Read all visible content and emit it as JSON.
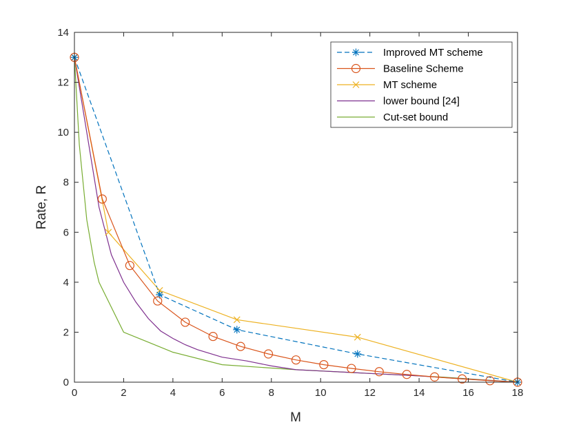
{
  "chart_data": {
    "type": "line",
    "title": "",
    "xlabel": "M",
    "ylabel": "Rate, R",
    "xlim": [
      0,
      18
    ],
    "ylim": [
      0,
      14
    ],
    "xticks": [
      "0",
      "2",
      "4",
      "6",
      "8",
      "10",
      "12",
      "14",
      "16",
      "18"
    ],
    "yticks": [
      "0",
      "2",
      "4",
      "6",
      "8",
      "10",
      "12",
      "14"
    ],
    "grid": false,
    "legend_position": "top-right",
    "series": [
      {
        "name": "Improved MT scheme",
        "color": "#0072BD",
        "line": "dashed",
        "marker": "asterisk",
        "x": [
          0,
          3.46,
          6.6,
          11.5,
          18
        ],
        "y": [
          13,
          3.5,
          2.1,
          1.13,
          0
        ],
        "marker_x": [
          0,
          3.46,
          6.6,
          11.5,
          18
        ],
        "marker_y": [
          13,
          3.5,
          2.1,
          1.13,
          0
        ]
      },
      {
        "name": "Baseline Scheme",
        "color": "#D95319",
        "line": "solid",
        "marker": "circle",
        "x": [
          0,
          1.13,
          2.25,
          3.38,
          4.5,
          5.63,
          6.75,
          7.88,
          9.0,
          10.13,
          11.25,
          12.38,
          13.5,
          14.63,
          15.75,
          16.88,
          18
        ],
        "y": [
          13,
          7.33,
          4.67,
          3.25,
          2.4,
          1.83,
          1.43,
          1.13,
          0.89,
          0.7,
          0.55,
          0.42,
          0.31,
          0.21,
          0.13,
          0.06,
          0
        ],
        "marker_x": [
          0,
          1.13,
          2.25,
          3.38,
          4.5,
          5.63,
          6.75,
          7.88,
          9.0,
          10.13,
          11.25,
          12.38,
          13.5,
          14.63,
          15.75,
          16.88,
          18
        ],
        "marker_y": [
          13,
          7.33,
          4.67,
          3.25,
          2.4,
          1.83,
          1.43,
          1.13,
          0.89,
          0.7,
          0.55,
          0.42,
          0.31,
          0.21,
          0.13,
          0.06,
          0
        ]
      },
      {
        "name": "MT scheme",
        "color": "#EDB120",
        "line": "solid",
        "marker": "cross",
        "x": [
          0,
          1.38,
          3.46,
          6.6,
          11.5,
          18
        ],
        "y": [
          13,
          6.0,
          3.67,
          2.5,
          1.8,
          0
        ],
        "marker_x": [
          0,
          1.38,
          3.46,
          6.6,
          11.5,
          18
        ],
        "marker_y": [
          13,
          6.0,
          3.67,
          2.5,
          1.8,
          0
        ]
      },
      {
        "name": "lower bound [24]",
        "color": "#7E2F8E",
        "line": "solid",
        "marker": "none",
        "x": [
          0,
          0.5,
          1.0,
          1.5,
          2.0,
          2.5,
          3.0,
          3.5,
          4.0,
          4.5,
          5.0,
          6.0,
          7.0,
          8.0,
          9.0,
          10.0,
          12.0,
          14.0,
          16.0,
          18.0
        ],
        "y": [
          13,
          10.0,
          7.0,
          5.1,
          4.0,
          3.2,
          2.55,
          2.05,
          1.75,
          1.5,
          1.3,
          1.0,
          0.85,
          0.65,
          0.5,
          0.45,
          0.35,
          0.25,
          0.12,
          0
        ]
      },
      {
        "name": "Cut-set bound",
        "color": "#77AC30",
        "line": "solid",
        "marker": "none",
        "x": [
          0,
          0.2,
          0.5,
          0.8,
          1.0,
          1.3,
          2.0,
          3.0,
          4.0,
          6.0,
          9.0,
          12.0,
          15.0,
          18.0
        ],
        "y": [
          13,
          9.5,
          6.5,
          4.8,
          4.0,
          3.4,
          2.0,
          1.6,
          1.2,
          0.7,
          0.5,
          0.35,
          0.2,
          0
        ]
      }
    ]
  }
}
